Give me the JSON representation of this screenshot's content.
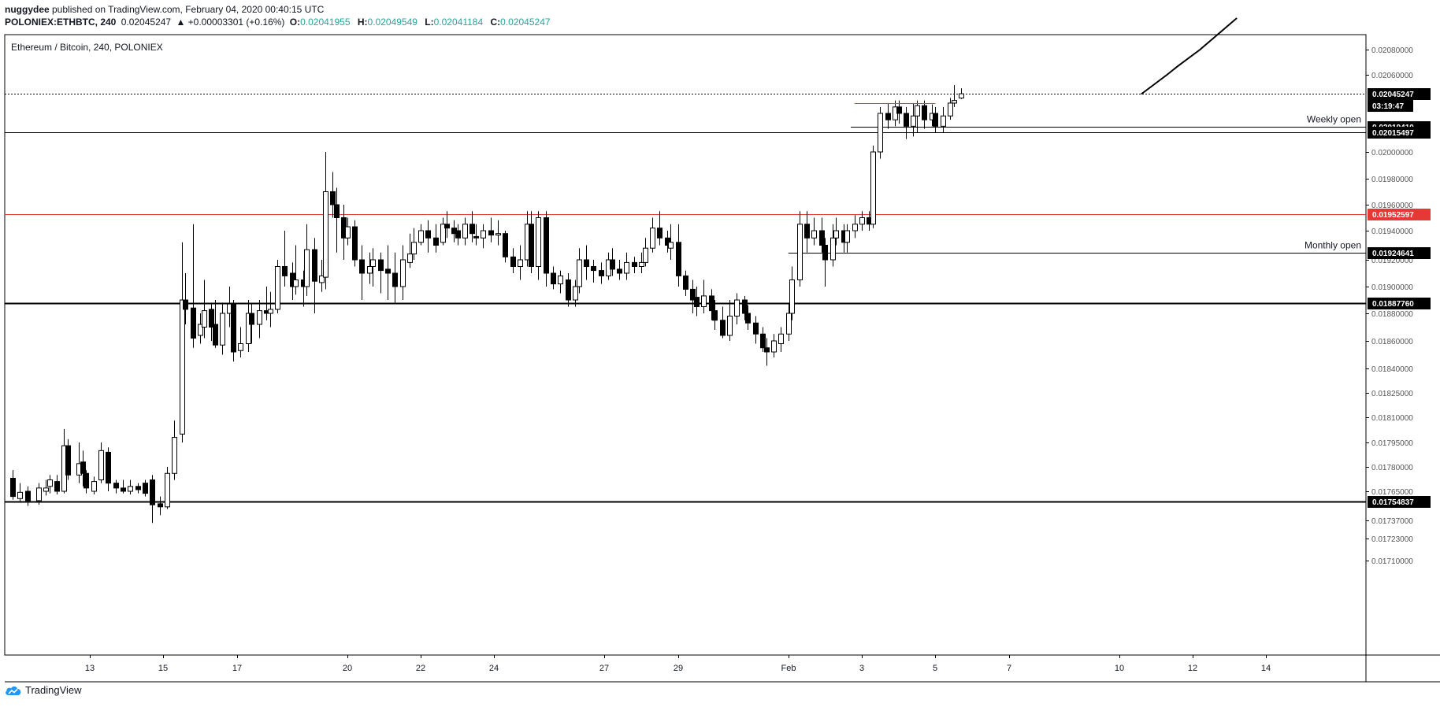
{
  "header": {
    "author": "nuggydee",
    "published_text": " published on TradingView.com, February 04, 2020 00:40:15 UTC",
    "symbol": "POLONIEX:ETHBTC, 240",
    "last": "0.02045247",
    "change": "▲ +0.00003301 (+0.16%)",
    "o_label": "O:",
    "o_value": "0.02041955",
    "h_label": "H:",
    "h_value": "0.02049549",
    "l_label": "L:",
    "l_value": "0.02041184",
    "c_label": "C:",
    "c_value": "0.02045247"
  },
  "footer": {
    "brand": "TradingView",
    "logo_icon": "tradingview-cloud-icon"
  },
  "colors": {
    "accent_green": "#26a69a",
    "red_line": "#e53935",
    "black": "#000000"
  },
  "chart_data": {
    "type": "candlestick",
    "title": "Ethereum / Bitcoin, 240, POLONIEX",
    "ylim": [
      0.01705,
      0.02105
    ],
    "y_scale": "nonlinear (tick spacing follows the price axis labels)",
    "grid": false,
    "yticks": [
      {
        "label": "0.02080000",
        "v": 0.0208
      },
      {
        "label": "0.02060000",
        "v": 0.0206
      },
      {
        "label": "0.02000000",
        "v": 0.02
      },
      {
        "label": "0.01980000",
        "v": 0.0198
      },
      {
        "label": "0.01960000",
        "v": 0.0196
      },
      {
        "label": "0.01940000",
        "v": 0.0194
      },
      {
        "label": "0.01920000",
        "v": 0.0192
      },
      {
        "label": "0.01900000",
        "v": 0.019
      },
      {
        "label": "0.01880000",
        "v": 0.0188
      },
      {
        "label": "0.01860000",
        "v": 0.0186
      },
      {
        "label": "0.01840000",
        "v": 0.0184
      },
      {
        "label": "0.01825000",
        "v": 0.01825
      },
      {
        "label": "0.01810000",
        "v": 0.0181
      },
      {
        "label": "0.01795000",
        "v": 0.01795
      },
      {
        "label": "0.01780000",
        "v": 0.0178
      },
      {
        "label": "0.01765000",
        "v": 0.01765
      },
      {
        "label": "0.01737000",
        "v": 0.01737
      },
      {
        "label": "0.01723000",
        "v": 0.01723
      },
      {
        "label": "0.01710000",
        "v": 0.0171
      }
    ],
    "xticks": [
      {
        "label": "13",
        "t": 13
      },
      {
        "label": "15",
        "t": 15
      },
      {
        "label": "17",
        "t": 17
      },
      {
        "label": "20",
        "t": 20
      },
      {
        "label": "22",
        "t": 22
      },
      {
        "label": "24",
        "t": 24
      },
      {
        "label": "27",
        "t": 27
      },
      {
        "label": "29",
        "t": 29
      },
      {
        "label": "Feb",
        "t": 32
      },
      {
        "label": "3",
        "t": 34
      },
      {
        "label": "5",
        "t": 36
      },
      {
        "label": "7",
        "t": 38
      },
      {
        "label": "10",
        "t": 41
      },
      {
        "label": "12",
        "t": 43
      },
      {
        "label": "14",
        "t": 45
      }
    ],
    "levels": [
      {
        "name": "last-price",
        "value": 0.02045247,
        "label": "0.02045247",
        "style": "dotted",
        "color": "#000000",
        "x_start": 10.9
      },
      {
        "name": "weekly-open",
        "value": 0.0201941,
        "label": "0.02019410",
        "style": "thin",
        "color": "#000000",
        "x_start": 33.7,
        "text": "Weekly open"
      },
      {
        "name": "support-high",
        "value": 0.02015497,
        "label": "0.02015497",
        "style": "solid",
        "color": "#000000",
        "x_start": 10.9
      },
      {
        "name": "red-resistance",
        "value": 0.01952597,
        "label": "0.01952597",
        "style": "red",
        "color": "#e53935",
        "x_start": 10.9
      },
      {
        "name": "monthly-open",
        "value": 0.01924641,
        "label": "0.01924641",
        "style": "thin",
        "color": "#000000",
        "x_start": 32.0,
        "text": "Monthly open"
      },
      {
        "name": "support-mid",
        "value": 0.0188776,
        "label": "0.01887760",
        "style": "thick",
        "color": "#000000",
        "x_start": 10.9
      },
      {
        "name": "support-low",
        "value": 0.01754837,
        "label": "0.01754837",
        "style": "thick",
        "color": "#000000",
        "x_start": 10.9
      }
    ],
    "countdown": "03:19:47",
    "small_red_line": {
      "x1": 33.8,
      "x2": 36.0,
      "value": 0.02038
    },
    "projection": {
      "points": [
        [
          41.6,
          0.02045
        ],
        [
          42.3,
          0.0206
        ],
        [
          42.6,
          0.02067
        ],
        [
          43.2,
          0.0208
        ],
        [
          43.8,
          0.02095
        ],
        [
          44.2,
          0.02105
        ]
      ]
    },
    "candles": [
      [
        10.9,
        0.01773,
        0.0176,
        0.01778,
        0.01757
      ],
      [
        11.1,
        0.01758,
        0.01764,
        0.0177,
        0.01754
      ],
      [
        11.3,
        0.01765,
        0.01756,
        0.01768,
        0.01751
      ],
      [
        11.6,
        0.01756,
        0.01767,
        0.0177,
        0.01752
      ],
      [
        11.8,
        0.01765,
        0.01767,
        0.01772,
        0.01761
      ],
      [
        11.9,
        0.01768,
        0.01772,
        0.01775,
        0.01763
      ],
      [
        12.1,
        0.01771,
        0.01765,
        0.01775,
        0.01762
      ],
      [
        12.3,
        0.01765,
        0.01793,
        0.01803,
        0.01763
      ],
      [
        12.4,
        0.01793,
        0.01775,
        0.01797,
        0.01772
      ],
      [
        12.7,
        0.01775,
        0.01782,
        0.01795,
        0.0177
      ],
      [
        12.8,
        0.01783,
        0.01776,
        0.0179,
        0.01768
      ],
      [
        12.9,
        0.01776,
        0.01767,
        0.01778,
        0.01763
      ],
      [
        13.1,
        0.01765,
        0.01771,
        0.01774,
        0.01762
      ],
      [
        13.3,
        0.01772,
        0.0179,
        0.01795,
        0.0177
      ],
      [
        13.5,
        0.01789,
        0.0177,
        0.01792,
        0.01765
      ],
      [
        13.7,
        0.0177,
        0.01767,
        0.01772,
        0.01763
      ],
      [
        13.9,
        0.01767,
        0.01765,
        0.01772,
        0.01763
      ],
      [
        14.1,
        0.01765,
        0.01768,
        0.01772,
        0.01762
      ],
      [
        14.3,
        0.01768,
        0.01766,
        0.0177,
        0.01763
      ],
      [
        14.5,
        0.0177,
        0.01763,
        0.01772,
        0.0176
      ],
      [
        14.7,
        0.01772,
        0.01752,
        0.01775,
        0.01735
      ],
      [
        14.9,
        0.01753,
        0.0175,
        0.0176,
        0.01742
      ],
      [
        15.1,
        0.0175,
        0.01776,
        0.0178,
        0.01748
      ],
      [
        15.3,
        0.01776,
        0.01798,
        0.01808,
        0.01772
      ],
      [
        15.5,
        0.018,
        0.0189,
        0.01932,
        0.01795
      ],
      [
        15.6,
        0.0189,
        0.01883,
        0.0191,
        0.01872
      ],
      [
        15.8,
        0.01884,
        0.01862,
        0.01945,
        0.01855
      ],
      [
        16.0,
        0.01864,
        0.01872,
        0.0188,
        0.01858
      ],
      [
        16.1,
        0.0187,
        0.01882,
        0.01905,
        0.01862
      ],
      [
        16.3,
        0.01883,
        0.0187,
        0.01888,
        0.0186
      ],
      [
        16.4,
        0.01872,
        0.01857,
        0.0189,
        0.01855
      ],
      [
        16.6,
        0.01857,
        0.0188,
        0.01888,
        0.0185
      ],
      [
        16.8,
        0.0188,
        0.01887,
        0.019,
        0.0187
      ],
      [
        16.9,
        0.01887,
        0.01852,
        0.0189,
        0.01845
      ],
      [
        17.1,
        0.01853,
        0.01858,
        0.0187,
        0.01848
      ],
      [
        17.3,
        0.01858,
        0.0188,
        0.0189,
        0.01852
      ],
      [
        17.4,
        0.0188,
        0.01872,
        0.01887,
        0.01858
      ],
      [
        17.6,
        0.01872,
        0.01882,
        0.0189,
        0.01862
      ],
      [
        17.8,
        0.01882,
        0.0188,
        0.019,
        0.01875
      ],
      [
        17.9,
        0.0188,
        0.01883,
        0.01896,
        0.0187
      ],
      [
        18.1,
        0.01883,
        0.01915,
        0.0192,
        0.0188
      ],
      [
        18.3,
        0.01915,
        0.01908,
        0.0194,
        0.019
      ],
      [
        18.5,
        0.0191,
        0.019,
        0.01918,
        0.0189
      ],
      [
        18.6,
        0.019,
        0.01905,
        0.0193,
        0.01894
      ],
      [
        18.8,
        0.01905,
        0.019,
        0.01912,
        0.01885
      ],
      [
        18.9,
        0.019,
        0.01927,
        0.01945,
        0.01893
      ],
      [
        19.1,
        0.01927,
        0.01904,
        0.01935,
        0.0188
      ],
      [
        19.3,
        0.01903,
        0.01908,
        0.0192,
        0.01896
      ],
      [
        19.4,
        0.01907,
        0.0197,
        0.02,
        0.01898
      ],
      [
        19.6,
        0.0197,
        0.0196,
        0.01985,
        0.0195
      ],
      [
        19.7,
        0.0196,
        0.0195,
        0.01973,
        0.01925
      ],
      [
        19.9,
        0.0195,
        0.01935,
        0.0196,
        0.0192
      ],
      [
        20.0,
        0.01935,
        0.01943,
        0.0195,
        0.0193
      ],
      [
        20.2,
        0.01943,
        0.0192,
        0.01948,
        0.01915
      ],
      [
        20.4,
        0.0192,
        0.0191,
        0.0193,
        0.0189
      ],
      [
        20.6,
        0.0191,
        0.01915,
        0.01925,
        0.01902
      ],
      [
        20.7,
        0.01915,
        0.0192,
        0.01928,
        0.019
      ],
      [
        20.9,
        0.0192,
        0.01912,
        0.01925,
        0.01895
      ],
      [
        21.1,
        0.01913,
        0.0191,
        0.0193,
        0.0189
      ],
      [
        21.3,
        0.0191,
        0.019,
        0.01925,
        0.01888
      ],
      [
        21.5,
        0.019,
        0.0192,
        0.0193,
        0.0189
      ],
      [
        21.7,
        0.01918,
        0.01924,
        0.01938,
        0.01914
      ],
      [
        21.8,
        0.01924,
        0.01932,
        0.01942,
        0.0192
      ],
      [
        22.0,
        0.01932,
        0.0194,
        0.01945,
        0.0193
      ],
      [
        22.2,
        0.0194,
        0.01935,
        0.01948,
        0.01925
      ],
      [
        22.4,
        0.01935,
        0.0193,
        0.01945,
        0.01925
      ],
      [
        22.6,
        0.01932,
        0.01945,
        0.0195,
        0.0193
      ],
      [
        22.7,
        0.01945,
        0.01942,
        0.01955,
        0.01935
      ],
      [
        22.9,
        0.01942,
        0.01938,
        0.01948,
        0.01932
      ],
      [
        23.0,
        0.0194,
        0.01935,
        0.01945,
        0.0193
      ],
      [
        23.2,
        0.01935,
        0.01945,
        0.0195,
        0.0193
      ],
      [
        23.4,
        0.01945,
        0.01938,
        0.01955,
        0.01932
      ],
      [
        23.5,
        0.01936,
        0.01935,
        0.01945,
        0.0193
      ],
      [
        23.7,
        0.01935,
        0.0194,
        0.01945,
        0.01928
      ],
      [
        23.9,
        0.0194,
        0.01937,
        0.0195,
        0.01932
      ],
      [
        24.1,
        0.01937,
        0.01938,
        0.01948,
        0.0193
      ],
      [
        24.3,
        0.01938,
        0.01922,
        0.0194,
        0.01918
      ],
      [
        24.5,
        0.01922,
        0.01915,
        0.01928,
        0.0191
      ],
      [
        24.7,
        0.01915,
        0.0192,
        0.0193,
        0.01905
      ],
      [
        24.9,
        0.0192,
        0.01945,
        0.01955,
        0.01915
      ],
      [
        25.0,
        0.01945,
        0.01915,
        0.01955,
        0.0191
      ],
      [
        25.2,
        0.01915,
        0.0195,
        0.01955,
        0.01905
      ],
      [
        25.4,
        0.0195,
        0.0191,
        0.01955,
        0.019
      ],
      [
        25.6,
        0.0191,
        0.01902,
        0.01915,
        0.01898
      ],
      [
        25.8,
        0.01902,
        0.01908,
        0.01912,
        0.01895
      ],
      [
        26.0,
        0.01905,
        0.0189,
        0.0191,
        0.01885
      ],
      [
        26.2,
        0.0189,
        0.019,
        0.01905,
        0.01885
      ],
      [
        26.3,
        0.019,
        0.0192,
        0.01928,
        0.01895
      ],
      [
        26.5,
        0.0192,
        0.01915,
        0.0193,
        0.01905
      ],
      [
        26.7,
        0.01915,
        0.01912,
        0.0192,
        0.01903
      ],
      [
        26.9,
        0.01912,
        0.01908,
        0.01918,
        0.01902
      ],
      [
        27.1,
        0.01908,
        0.0192,
        0.01925,
        0.01905
      ],
      [
        27.2,
        0.0192,
        0.01913,
        0.01928,
        0.01908
      ],
      [
        27.4,
        0.01913,
        0.0191,
        0.0192,
        0.01905
      ],
      [
        27.6,
        0.0191,
        0.01918,
        0.01925,
        0.01905
      ],
      [
        27.8,
        0.01918,
        0.01915,
        0.01922,
        0.0191
      ],
      [
        28.0,
        0.01915,
        0.01918,
        0.01925,
        0.0191
      ],
      [
        28.1,
        0.01918,
        0.01928,
        0.01935,
        0.01915
      ],
      [
        28.3,
        0.01928,
        0.01942,
        0.0195,
        0.01925
      ],
      [
        28.5,
        0.01942,
        0.01935,
        0.01955,
        0.0193
      ],
      [
        28.7,
        0.01935,
        0.0193,
        0.0194,
        0.01925
      ],
      [
        28.8,
        0.01928,
        0.01932,
        0.01945,
        0.0192
      ],
      [
        29.0,
        0.01932,
        0.01908,
        0.01945,
        0.019
      ],
      [
        29.2,
        0.01908,
        0.01898,
        0.01912,
        0.01893
      ],
      [
        29.4,
        0.01898,
        0.0189,
        0.01905,
        0.0188
      ],
      [
        29.5,
        0.01892,
        0.01885,
        0.019,
        0.01878
      ],
      [
        29.7,
        0.01885,
        0.01893,
        0.01905,
        0.0188
      ],
      [
        29.9,
        0.01893,
        0.01882,
        0.01898,
        0.01875
      ],
      [
        30.0,
        0.01882,
        0.01875,
        0.0189,
        0.01868
      ],
      [
        30.2,
        0.01875,
        0.01864,
        0.01885,
        0.01862
      ],
      [
        30.4,
        0.01864,
        0.01878,
        0.0189,
        0.0186
      ],
      [
        30.6,
        0.01878,
        0.0189,
        0.01895,
        0.01872
      ],
      [
        30.8,
        0.0189,
        0.0188,
        0.01893,
        0.01875
      ],
      [
        30.9,
        0.0188,
        0.01873,
        0.01886,
        0.01868
      ],
      [
        31.1,
        0.01873,
        0.01865,
        0.01878,
        0.01858
      ],
      [
        31.3,
        0.01865,
        0.01855,
        0.0187,
        0.01852
      ],
      [
        31.4,
        0.01855,
        0.01852,
        0.01862,
        0.01842
      ],
      [
        31.6,
        0.01852,
        0.0186,
        0.01865,
        0.01848
      ],
      [
        31.8,
        0.01858,
        0.01865,
        0.0187,
        0.01852
      ],
      [
        32.0,
        0.01865,
        0.0188,
        0.01888,
        0.0186
      ],
      [
        32.1,
        0.0188,
        0.01905,
        0.01915,
        0.01875
      ],
      [
        32.3,
        0.01905,
        0.01945,
        0.01955,
        0.019
      ],
      [
        32.5,
        0.01945,
        0.01935,
        0.01955,
        0.01925
      ],
      [
        32.7,
        0.01935,
        0.0194,
        0.0195,
        0.0193
      ],
      [
        32.9,
        0.0194,
        0.0193,
        0.0195,
        0.01925
      ],
      [
        33.0,
        0.0193,
        0.0192,
        0.01935,
        0.019
      ],
      [
        33.2,
        0.0192,
        0.01935,
        0.01945,
        0.01915
      ],
      [
        33.3,
        0.01935,
        0.0194,
        0.0195,
        0.0193
      ],
      [
        33.5,
        0.0194,
        0.01932,
        0.01945,
        0.01925
      ],
      [
        33.6,
        0.01932,
        0.0194,
        0.01945,
        0.01925
      ],
      [
        33.8,
        0.0194,
        0.01945,
        0.01952,
        0.01935
      ],
      [
        34.0,
        0.01945,
        0.0195,
        0.01955,
        0.0194
      ],
      [
        34.2,
        0.0195,
        0.01945,
        0.01955,
        0.0194
      ],
      [
        34.3,
        0.01945,
        0.02,
        0.02005,
        0.01942
      ],
      [
        34.5,
        0.02,
        0.0203,
        0.02035,
        0.01995
      ],
      [
        34.7,
        0.0203,
        0.02025,
        0.02038,
        0.02018
      ],
      [
        34.9,
        0.02025,
        0.02035,
        0.0204,
        0.0202
      ],
      [
        35.0,
        0.02035,
        0.0203,
        0.0204,
        0.02022
      ],
      [
        35.2,
        0.0203,
        0.0202,
        0.02035,
        0.0201
      ],
      [
        35.4,
        0.0202,
        0.02028,
        0.02038,
        0.02012
      ],
      [
        35.5,
        0.02028,
        0.02036,
        0.0204,
        0.02015
      ],
      [
        35.7,
        0.02036,
        0.02025,
        0.0204,
        0.02018
      ],
      [
        35.9,
        0.02025,
        0.0203,
        0.02037,
        0.0202
      ],
      [
        36.0,
        0.0203,
        0.0202,
        0.02035,
        0.02015
      ],
      [
        36.2,
        0.0202,
        0.02028,
        0.02035,
        0.02015
      ],
      [
        36.4,
        0.02028,
        0.02038,
        0.02042,
        0.02025
      ],
      [
        36.5,
        0.02038,
        0.0204,
        0.02052,
        0.02035
      ],
      [
        36.7,
        0.02041955,
        0.02045247,
        0.02049549,
        0.02041184
      ]
    ]
  }
}
